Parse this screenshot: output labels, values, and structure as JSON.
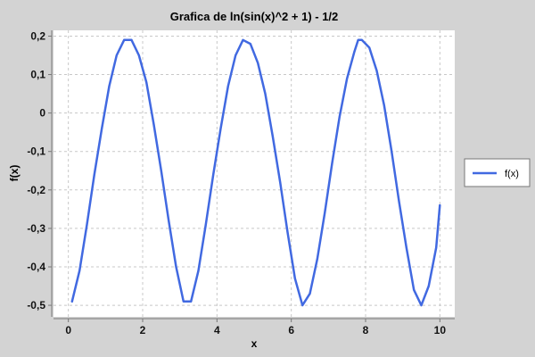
{
  "chart_data": {
    "type": "line",
    "title": "Grafica de ln(sin(x)^2 + 1) - 1/2",
    "xlabel": "x",
    "ylabel": "f(x)",
    "xlim": [
      -0.4,
      10.4
    ],
    "ylim": [
      -0.53,
      0.215
    ],
    "xticks": [
      0,
      2,
      4,
      6,
      8,
      10
    ],
    "xtick_labels": [
      "0",
      "2",
      "4",
      "6",
      "8",
      "10"
    ],
    "yticks": [
      0.2,
      0.1,
      0,
      -0.1,
      -0.2,
      -0.3,
      -0.4,
      -0.5
    ],
    "ytick_labels": [
      "0,2",
      "0,1",
      "0",
      "-0,1",
      "-0,2",
      "-0,3",
      "-0,4",
      "-0,5"
    ],
    "grid": true,
    "legend_position": "right",
    "series": [
      {
        "name": "f(x)",
        "color": "#4169e1",
        "x": [
          0.1,
          0.3,
          0.5,
          0.7,
          0.9,
          1.1,
          1.3,
          1.5,
          1.6,
          1.7,
          1.9,
          2.1,
          2.3,
          2.5,
          2.7,
          2.9,
          3.1,
          3.3,
          3.5,
          3.7,
          3.9,
          4.1,
          4.3,
          4.5,
          4.7,
          4.9,
          5.1,
          5.3,
          5.5,
          5.7,
          5.9,
          6.1,
          6.3,
          6.5,
          6.7,
          6.9,
          7.1,
          7.3,
          7.5,
          7.7,
          7.8,
          7.9,
          8.1,
          8.3,
          8.5,
          8.7,
          8.9,
          9.1,
          9.3,
          9.5,
          9.7,
          9.9,
          10.0
        ],
        "y": [
          -0.49,
          -0.41,
          -0.29,
          -0.16,
          -0.04,
          0.07,
          0.15,
          0.19,
          0.19,
          0.19,
          0.15,
          0.08,
          -0.03,
          -0.15,
          -0.28,
          -0.4,
          -0.49,
          -0.49,
          -0.41,
          -0.29,
          -0.16,
          -0.04,
          0.07,
          0.15,
          0.19,
          0.18,
          0.13,
          0.05,
          -0.06,
          -0.18,
          -0.31,
          -0.43,
          -0.5,
          -0.47,
          -0.38,
          -0.26,
          -0.13,
          -0.01,
          0.09,
          0.16,
          0.19,
          0.19,
          0.17,
          0.11,
          0.02,
          -0.1,
          -0.23,
          -0.35,
          -0.46,
          -0.5,
          -0.45,
          -0.35,
          -0.24
        ]
      }
    ]
  }
}
